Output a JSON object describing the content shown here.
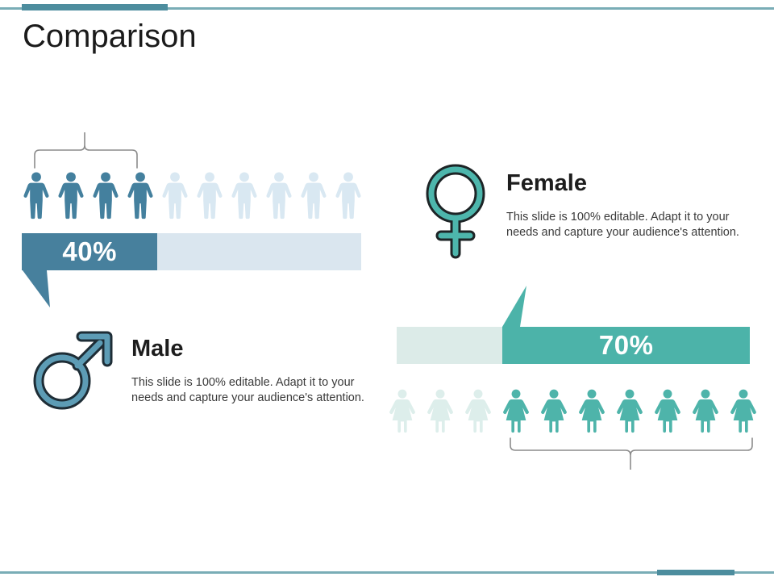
{
  "slide": {
    "title": "Comparison",
    "accent": {
      "rule_thin": "#79adb6",
      "rule_thick": "#4d8d9e"
    }
  },
  "male": {
    "heading": "Male",
    "description": "This slide is 100% editable. Adapt it to your needs and capture your audience's attention.",
    "percent": 40,
    "percent_label": "40%",
    "pictogram": {
      "total": 10,
      "filled": 4,
      "filled_side": "left",
      "filled_color": "#44809e",
      "empty_color": "#d9e8f2",
      "icon": "male-person-icon"
    },
    "bar": {
      "fill_color": "#47809d",
      "track_color": "#dae6ef"
    },
    "symbol": {
      "icon": "male-gender-symbol",
      "ring_color": "#5d9cb5",
      "outline_color": "#1e2d36"
    }
  },
  "female": {
    "heading": "Female",
    "description": "This slide is 100% editable. Adapt it to your needs and capture your audience's attention.",
    "percent": 70,
    "percent_label": "70%",
    "pictogram": {
      "total": 10,
      "filled": 7,
      "filled_side": "right",
      "filled_color": "#4eb4aa",
      "empty_color": "#ddeeeb",
      "icon": "female-person-icon"
    },
    "bar": {
      "fill_color": "#4cb3a9",
      "track_color": "#dcebe8"
    },
    "symbol": {
      "icon": "female-gender-symbol",
      "ring_color": "#4db6ac",
      "outline_color": "#1d2426"
    }
  },
  "chart_data": {
    "type": "bar",
    "title": "Comparison",
    "categories": [
      "Male",
      "Female"
    ],
    "values": [
      40,
      70
    ],
    "unit": "%",
    "annotations": [
      "Male pictograph: 4 of 10 person icons filled (left group bracketed)",
      "Female pictograph: 7 of 10 person icons filled (right group bracketed)"
    ],
    "legend_position": "none",
    "grid": false
  }
}
